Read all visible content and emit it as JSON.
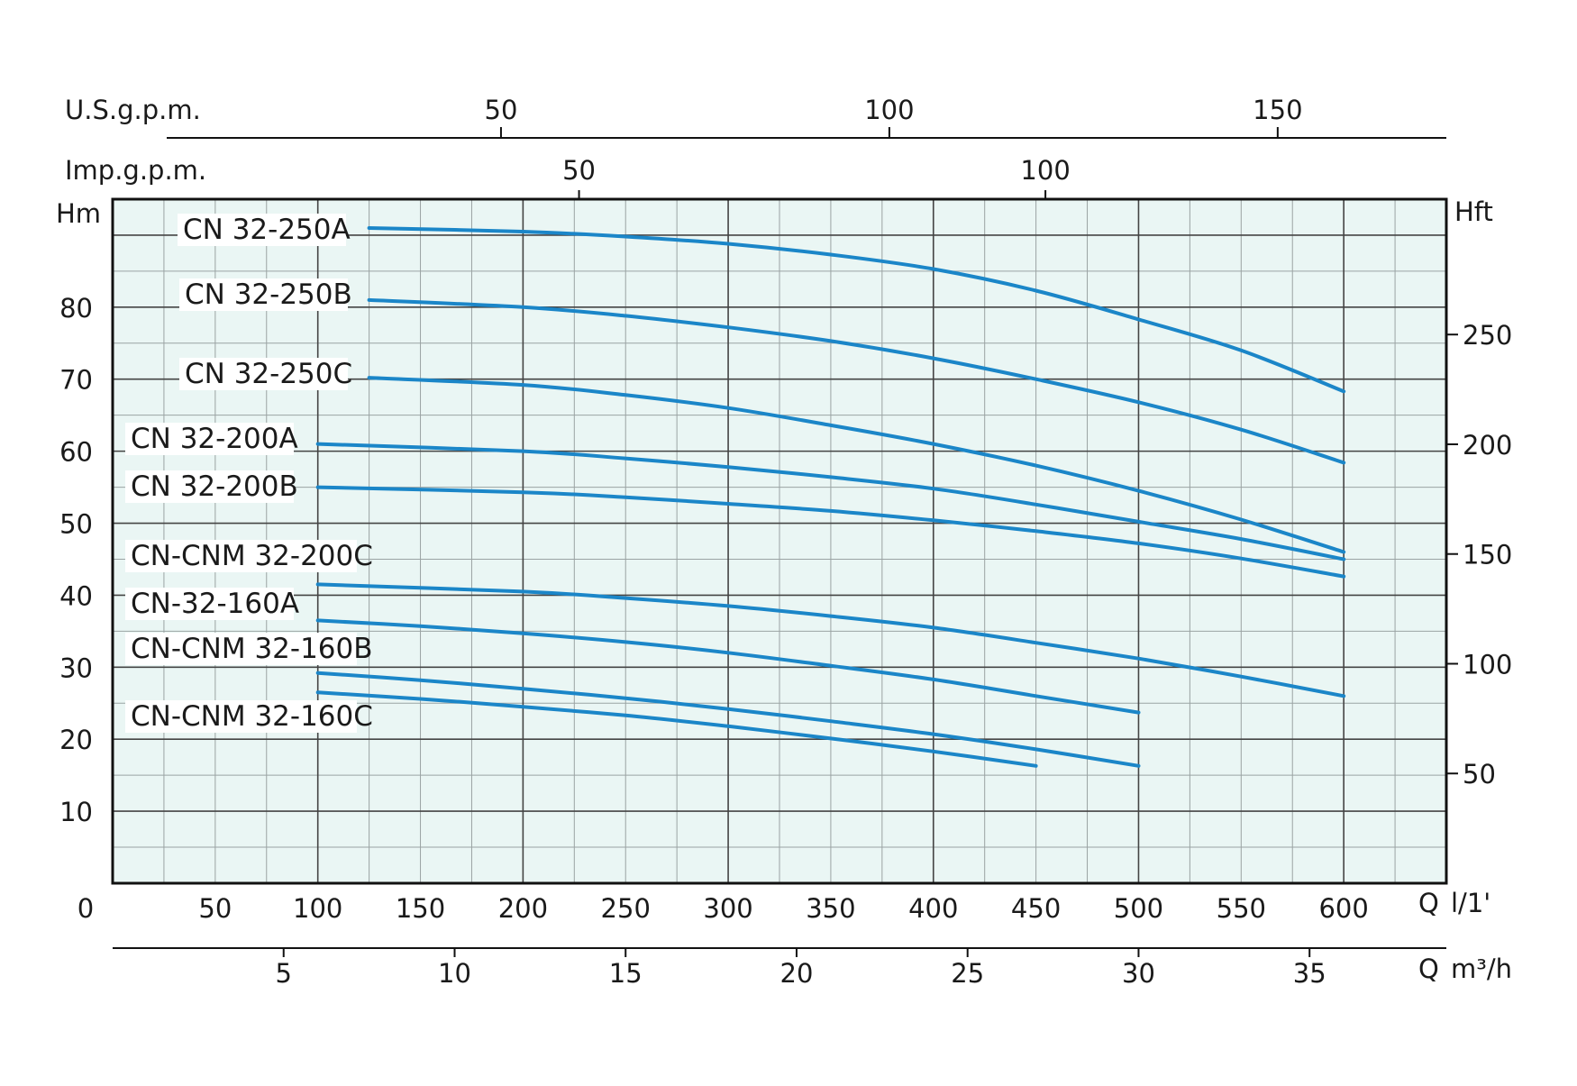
{
  "chart_data": {
    "type": "line",
    "title": "",
    "colors": {
      "curve": "#1b86c8",
      "plot_background": "#eaf6f4",
      "major_grid": "#444444",
      "minor_grid": "#9aa3a3",
      "axis": "#111111"
    },
    "grid": true,
    "x_axis": {
      "label": "Q l/1'",
      "unit_q": "Q",
      "unit": "l/1'",
      "range": [
        0,
        650
      ],
      "zero_label": "0",
      "ticks": [
        50,
        100,
        150,
        200,
        250,
        300,
        350,
        400,
        450,
        500,
        550,
        600
      ]
    },
    "x_axis_m3h": {
      "unit_q": "Q",
      "unit": "m³/h",
      "ticks": [
        5,
        10,
        15,
        20,
        25,
        30,
        35
      ]
    },
    "x_axis_usgpm": {
      "label": "U.S.g.p.m.",
      "ticks": [
        50,
        100,
        150
      ]
    },
    "x_axis_impgpm": {
      "label": "Imp.g.p.m.",
      "ticks": [
        50,
        100
      ]
    },
    "y_axis": {
      "label": "Hm",
      "range": [
        0,
        95
      ],
      "ticks": [
        10,
        20,
        30,
        40,
        50,
        60,
        70,
        80
      ]
    },
    "y_axis_right": {
      "label": "Hft",
      "ticks": [
        50,
        100,
        150,
        200,
        250
      ]
    },
    "series": [
      {
        "name": "CN 32-250A",
        "x": [
          125,
          200,
          250,
          300,
          350,
          400,
          450,
          500,
          550,
          600
        ],
        "y": [
          91,
          90.5,
          89.8,
          88.8,
          87.3,
          85.3,
          82.3,
          78.3,
          74.0,
          68.3
        ]
      },
      {
        "name": "CN 32-250B",
        "x": [
          125,
          200,
          250,
          300,
          350,
          400,
          450,
          500,
          550,
          600
        ],
        "y": [
          81,
          80.0,
          78.8,
          77.2,
          75.3,
          72.9,
          70.0,
          66.8,
          63.0,
          58.4
        ]
      },
      {
        "name": "CN 32-250C",
        "x": [
          125,
          200,
          250,
          300,
          350,
          400,
          450,
          500,
          550,
          600
        ],
        "y": [
          70.2,
          69.2,
          67.8,
          66.0,
          63.6,
          61.0,
          58.0,
          54.5,
          50.5,
          46.0
        ]
      },
      {
        "name": "CN 32-200A",
        "x": [
          100,
          200,
          250,
          300,
          350,
          400,
          450,
          500,
          550,
          600
        ],
        "y": [
          61,
          60.0,
          59.0,
          57.8,
          56.4,
          54.8,
          52.6,
          50.2,
          47.8,
          45.0
        ]
      },
      {
        "name": "CN 32-200B",
        "x": [
          100,
          200,
          250,
          300,
          350,
          400,
          450,
          500,
          550,
          600
        ],
        "y": [
          55,
          54.3,
          53.6,
          52.7,
          51.7,
          50.4,
          48.9,
          47.2,
          45.1,
          42.6
        ]
      },
      {
        "name": "CN-CNM 32-200C",
        "x": [
          100,
          200,
          250,
          300,
          350,
          400,
          450,
          500,
          550,
          600
        ],
        "y": [
          41.5,
          40.5,
          39.6,
          38.5,
          37.1,
          35.5,
          33.4,
          31.2,
          28.7,
          26.0
        ]
      },
      {
        "name": "CN-32-160A",
        "x": [
          100,
          150,
          200,
          250,
          300,
          350,
          400,
          450,
          500
        ],
        "y": [
          36.5,
          35.7,
          34.7,
          33.5,
          32.0,
          30.2,
          28.3,
          26.0,
          23.7
        ]
      },
      {
        "name": "CN-CNM 32-160B",
        "x": [
          100,
          150,
          200,
          250,
          300,
          350,
          400,
          450,
          500
        ],
        "y": [
          29.2,
          28.2,
          27.0,
          25.7,
          24.2,
          22.5,
          20.7,
          18.6,
          16.3
        ]
      },
      {
        "name": "CN-CNM 32-160C",
        "x": [
          100,
          150,
          200,
          250,
          300,
          350,
          400,
          450
        ],
        "y": [
          26.5,
          25.6,
          24.5,
          23.3,
          21.8,
          20.1,
          18.3,
          16.3
        ]
      }
    ]
  }
}
